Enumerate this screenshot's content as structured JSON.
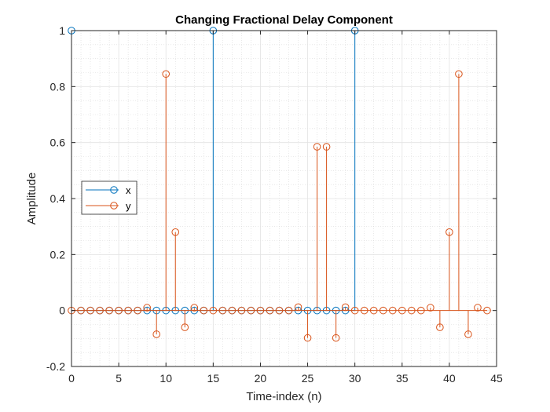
{
  "chart_data": {
    "type": "stem",
    "title": "Changing Fractional Delay Component",
    "xlabel": "Time-index (n)",
    "ylabel": "Amplitude",
    "xlim": [
      0,
      45
    ],
    "ylim": [
      -0.2,
      1
    ],
    "xticks": [
      0,
      5,
      10,
      15,
      20,
      25,
      30,
      35,
      40,
      45
    ],
    "yticks": [
      -0.2,
      0,
      0.2,
      0.4,
      0.6,
      0.8,
      1
    ],
    "grid": true,
    "minor_grid": true,
    "legend_position": "middle-left",
    "series": [
      {
        "name": "x",
        "color": "#0072BD",
        "x": [
          0,
          1,
          2,
          3,
          4,
          5,
          6,
          7,
          8,
          9,
          10,
          11,
          12,
          13,
          14,
          15,
          16,
          17,
          18,
          19,
          20,
          21,
          22,
          23,
          24,
          25,
          26,
          27,
          28,
          29,
          30
        ],
        "values": [
          1,
          0,
          0,
          0,
          0,
          0,
          0,
          0,
          0,
          0,
          0,
          0,
          0,
          0,
          0,
          1,
          0,
          0,
          0,
          0,
          0,
          0,
          0,
          0,
          0,
          0,
          0,
          0,
          0,
          0,
          1
        ]
      },
      {
        "name": "y",
        "color": "#D95319",
        "x": [
          0,
          1,
          2,
          3,
          4,
          5,
          6,
          7,
          8,
          9,
          10,
          11,
          12,
          13,
          14,
          15,
          16,
          17,
          18,
          19,
          20,
          21,
          22,
          23,
          24,
          25,
          26,
          27,
          28,
          29,
          30,
          31,
          32,
          33,
          34,
          35,
          36,
          37,
          38,
          39,
          40,
          41,
          42,
          43,
          44
        ],
        "values": [
          0,
          0,
          0,
          0,
          0,
          0,
          0,
          0,
          0.01,
          -0.085,
          0.845,
          0.28,
          -0.06,
          0.01,
          0,
          0,
          0,
          0,
          0,
          0,
          0,
          0,
          0,
          0,
          0.012,
          -0.098,
          0.585,
          0.585,
          -0.098,
          0.012,
          0,
          0,
          0,
          0,
          0,
          0,
          0,
          0,
          0.01,
          -0.06,
          0.28,
          0.845,
          -0.085,
          0.01,
          0
        ]
      }
    ]
  }
}
